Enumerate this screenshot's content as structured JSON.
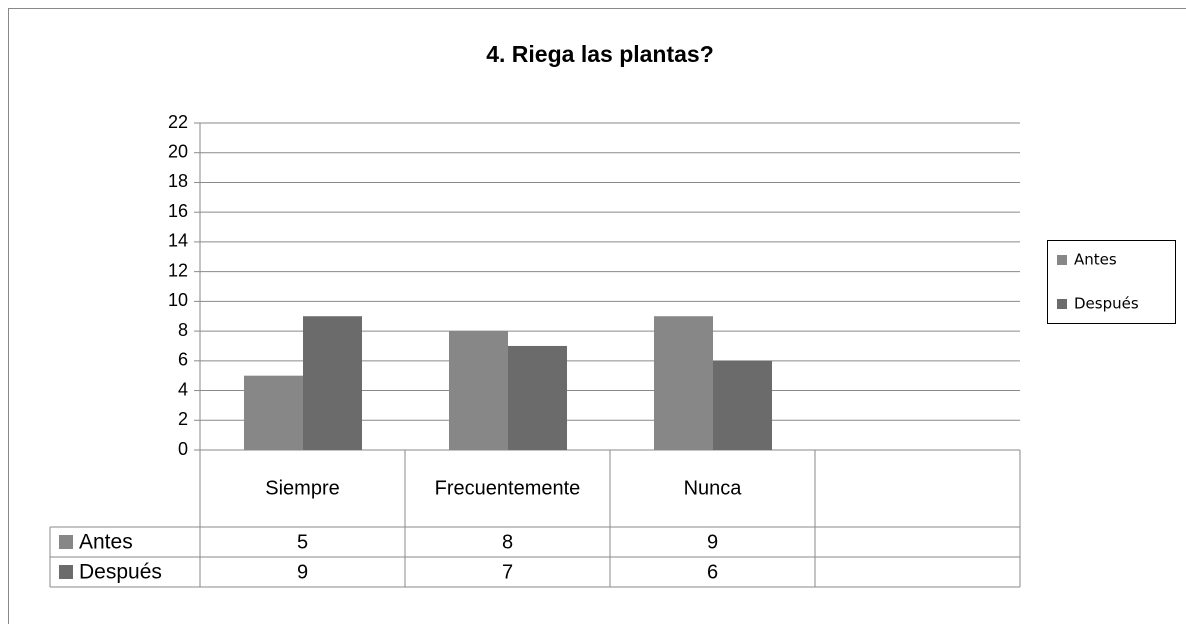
{
  "chart_data": {
    "type": "bar",
    "title": "4. Riega las plantas?",
    "categories": [
      "Siempre",
      "Frecuentemente",
      "Nunca",
      null
    ],
    "series": [
      {
        "name": "Antes",
        "color": "#878787",
        "values": [
          5,
          8,
          9,
          null
        ]
      },
      {
        "name": "Después",
        "color": "#6b6b6b",
        "values": [
          9,
          7,
          6,
          null
        ]
      }
    ],
    "ylim": [
      0,
      22
    ],
    "yticks": [
      0,
      2,
      4,
      6,
      8,
      10,
      12,
      14,
      16,
      18,
      20,
      22
    ],
    "grid": true,
    "legend": "right",
    "data_table": true
  }
}
